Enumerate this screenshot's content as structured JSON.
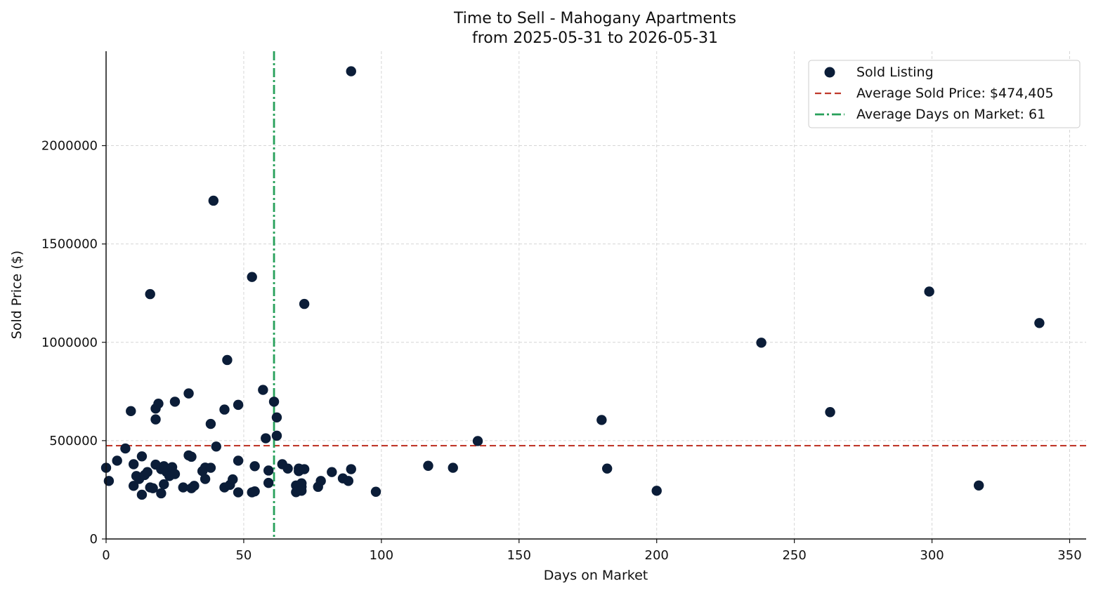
{
  "chart_data": {
    "type": "scatter",
    "title": "Time to Sell - Mahogany Apartments",
    "subtitle": "from 2025-05-31 to 2026-05-31",
    "xlabel": "Days on Market",
    "ylabel": "Sold Price ($)",
    "xlim": [
      0,
      356
    ],
    "ylim": [
      0,
      2480000
    ],
    "xticks": [
      0,
      50,
      100,
      150,
      200,
      250,
      300,
      350
    ],
    "yticks": [
      0,
      500000,
      1000000,
      1500000,
      2000000
    ],
    "grid": true,
    "legend_position": "top-right",
    "colors": {
      "points": "#0b1d38",
      "avg_price_line": "#c0392b",
      "avg_days_line": "#27a05a",
      "axis": "#111111"
    },
    "series": [
      {
        "name": "Sold Listing",
        "points": [
          [
            0,
            362000
          ],
          [
            1,
            295000
          ],
          [
            4,
            398000
          ],
          [
            7,
            460000
          ],
          [
            9,
            650000
          ],
          [
            10,
            380000
          ],
          [
            10,
            270000
          ],
          [
            11,
            320000
          ],
          [
            12,
            305000
          ],
          [
            13,
            420000
          ],
          [
            13,
            225000
          ],
          [
            14,
            325000
          ],
          [
            15,
            340000
          ],
          [
            16,
            1245000
          ],
          [
            16,
            262000
          ],
          [
            17,
            258000
          ],
          [
            18,
            608000
          ],
          [
            18,
            663000
          ],
          [
            18,
            378000
          ],
          [
            19,
            688000
          ],
          [
            20,
            355000
          ],
          [
            20,
            232000
          ],
          [
            21,
            370000
          ],
          [
            21,
            278000
          ],
          [
            22,
            340000
          ],
          [
            23,
            320000
          ],
          [
            24,
            365000
          ],
          [
            25,
            698000
          ],
          [
            25,
            330000
          ],
          [
            28,
            262000
          ],
          [
            30,
            740000
          ],
          [
            30,
            425000
          ],
          [
            31,
            418000
          ],
          [
            31,
            258000
          ],
          [
            32,
            270000
          ],
          [
            35,
            345000
          ],
          [
            36,
            363000
          ],
          [
            36,
            305000
          ],
          [
            38,
            585000
          ],
          [
            38,
            362000
          ],
          [
            39,
            1720000
          ],
          [
            40,
            470000
          ],
          [
            43,
            658000
          ],
          [
            43,
            262000
          ],
          [
            44,
            910000
          ],
          [
            45,
            275000
          ],
          [
            46,
            303000
          ],
          [
            48,
            682000
          ],
          [
            48,
            398000
          ],
          [
            48,
            237000
          ],
          [
            53,
            1332000
          ],
          [
            53,
            237000
          ],
          [
            54,
            370000
          ],
          [
            54,
            242000
          ],
          [
            57,
            758000
          ],
          [
            58,
            512000
          ],
          [
            59,
            348000
          ],
          [
            59,
            285000
          ],
          [
            61,
            698000
          ],
          [
            62,
            618000
          ],
          [
            62,
            525000
          ],
          [
            64,
            380000
          ],
          [
            66,
            358000
          ],
          [
            69,
            272000
          ],
          [
            69,
            238000
          ],
          [
            70,
            358000
          ],
          [
            70,
            345000
          ],
          [
            71,
            265000
          ],
          [
            71,
            283000
          ],
          [
            71,
            245000
          ],
          [
            72,
            1195000
          ],
          [
            72,
            355000
          ],
          [
            77,
            265000
          ],
          [
            78,
            295000
          ],
          [
            82,
            340000
          ],
          [
            86,
            308000
          ],
          [
            88,
            295000
          ],
          [
            89,
            2378000
          ],
          [
            89,
            355000
          ],
          [
            98,
            240000
          ],
          [
            117,
            372000
          ],
          [
            126,
            362000
          ],
          [
            135,
            498000
          ],
          [
            180,
            605000
          ],
          [
            182,
            358000
          ],
          [
            200,
            245000
          ],
          [
            238,
            998000
          ],
          [
            263,
            645000
          ],
          [
            299,
            1258000
          ],
          [
            317,
            272000
          ],
          [
            339,
            1098000
          ]
        ]
      }
    ],
    "reference_lines": [
      {
        "name": "Average Sold Price: $474,405",
        "orientation": "horizontal",
        "value": 474405,
        "style": "dashed"
      },
      {
        "name": "Average Days on Market: 61",
        "orientation": "vertical",
        "value": 61,
        "style": "dash-dot"
      }
    ]
  }
}
